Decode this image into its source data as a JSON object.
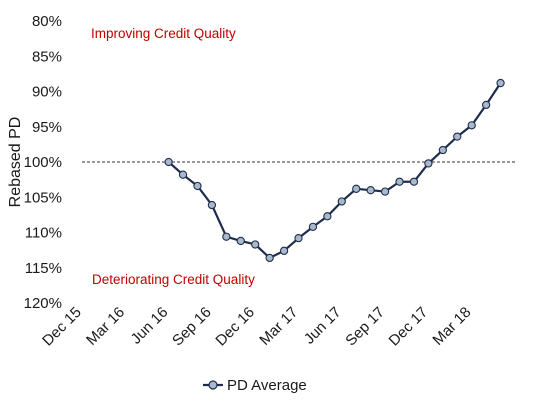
{
  "chart_data": {
    "type": "line",
    "ylabel": "Rebased PD",
    "xlabel": "",
    "title": "",
    "y_axis_inverted": true,
    "ylim": [
      80,
      120
    ],
    "y_ticks": [
      "80%",
      "85%",
      "90%",
      "95%",
      "100%",
      "105%",
      "110%",
      "115%",
      "120%"
    ],
    "y_tick_values": [
      80,
      85,
      90,
      95,
      100,
      105,
      110,
      115,
      120
    ],
    "x_ticks": [
      "Dec 15",
      "Mar 16",
      "Jun 16",
      "Sep 16",
      "Dec 16",
      "Mar 17",
      "Jun 17",
      "Sep 17",
      "Dec 17",
      "Mar 18"
    ],
    "x_tick_values": [
      0,
      3,
      6,
      9,
      12,
      15,
      18,
      21,
      24,
      27
    ],
    "reference_line": {
      "y": 100,
      "style": "dashed"
    },
    "annotations": [
      {
        "text": "Improving Credit Quality",
        "color": "#c00000"
      },
      {
        "text": "Deteriorating Credit Quality",
        "color": "#c00000"
      }
    ],
    "series": [
      {
        "name": "PD Average",
        "line_color": "#1f2d4d",
        "marker_color": "#a9b9cc",
        "x": [
          6,
          7,
          8,
          9,
          10,
          11,
          12,
          13,
          14,
          15,
          16,
          17,
          18,
          19,
          20,
          21,
          22,
          23,
          24,
          25,
          26,
          27,
          28,
          29
        ],
        "values": [
          100,
          101.8,
          103.4,
          106.1,
          110.6,
          111.2,
          111.7,
          113.6,
          112.6,
          110.8,
          109.2,
          107.7,
          105.6,
          103.8,
          104.0,
          104.2,
          102.8,
          102.8,
          100.2,
          98.3,
          96.4,
          94.8,
          91.9,
          88.8
        ]
      }
    ],
    "legend": {
      "position": "bottom",
      "entries": [
        "PD Average"
      ]
    }
  }
}
